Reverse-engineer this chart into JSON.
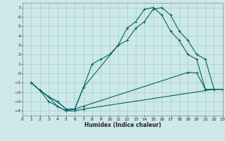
{
  "xlabel": "Humidex (Indice chaleur)",
  "background_color": "#cce8e8",
  "grid_color": "#aacccc",
  "line_color": "#006666",
  "xlim": [
    0,
    23
  ],
  "ylim": [
    -4.5,
    7.5
  ],
  "xticks": [
    0,
    1,
    2,
    3,
    4,
    5,
    6,
    7,
    8,
    9,
    10,
    11,
    12,
    13,
    14,
    15,
    16,
    17,
    18,
    19,
    20,
    21,
    22,
    23
  ],
  "yticks": [
    -4,
    -3,
    -2,
    -1,
    0,
    1,
    2,
    3,
    4,
    5,
    6,
    7
  ],
  "line1_x": [
    1,
    2,
    3,
    4,
    5,
    6,
    7,
    22,
    23
  ],
  "line1_y": [
    -1,
    -1.8,
    -2.5,
    -3.5,
    -4,
    -4,
    -3.8,
    -1.7,
    -1.7
  ],
  "line2_x": [
    1,
    2,
    3,
    4,
    5,
    6,
    7,
    19,
    20,
    21,
    22,
    23
  ],
  "line2_y": [
    -1,
    -1.8,
    -2.5,
    -3,
    -3.8,
    -3.8,
    -3.5,
    0.1,
    0.05,
    -1.7,
    -1.7,
    -1.7
  ],
  "line3_x": [
    1,
    2,
    3,
    4,
    5,
    6,
    7,
    11,
    12,
    13,
    14,
    15,
    16,
    17,
    18,
    19,
    20,
    21,
    22
  ],
  "line3_y": [
    -1,
    -1.8,
    -3,
    -3.5,
    -4,
    -3.8,
    -1.5,
    3.0,
    4.8,
    5.5,
    6.8,
    7.0,
    6.2,
    4.5,
    3.5,
    2.0,
    1.5,
    -1.7,
    -1.7
  ],
  "line4_x": [
    1,
    2,
    3,
    4,
    5,
    6,
    7,
    8,
    9,
    10,
    11,
    12,
    13,
    14,
    15,
    16,
    17,
    18,
    19,
    20,
    21,
    22,
    23
  ],
  "line4_y": [
    -1,
    -1.8,
    -2.5,
    -3,
    -3.8,
    -3.8,
    -1.5,
    1.0,
    1.5,
    2.0,
    3.0,
    3.5,
    4.8,
    5.5,
    6.8,
    7.0,
    6.2,
    4.5,
    3.5,
    2.0,
    1.5,
    -1.7,
    -1.7
  ],
  "xlabel_fontsize": 5.5,
  "tick_fontsize": 4.5
}
